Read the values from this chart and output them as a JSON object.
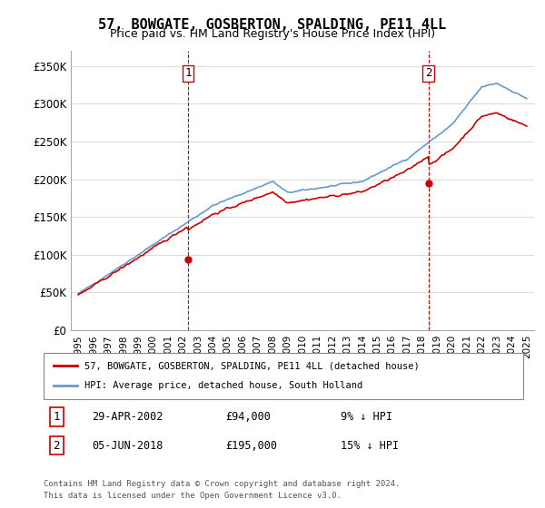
{
  "title": "57, BOWGATE, GOSBERTON, SPALDING, PE11 4LL",
  "subtitle": "Price paid vs. HM Land Registry's House Price Index (HPI)",
  "ylabel_ticks": [
    "£0",
    "£50K",
    "£100K",
    "£150K",
    "£200K",
    "£250K",
    "£300K",
    "£350K"
  ],
  "ytick_values": [
    0,
    50000,
    100000,
    150000,
    200000,
    250000,
    300000,
    350000
  ],
  "ylim": [
    0,
    370000
  ],
  "sale1_x": 2002.33,
  "sale1_price": 94000,
  "sale2_x": 2018.43,
  "sale2_price": 195000,
  "legend_line1": "57, BOWGATE, GOSBERTON, SPALDING, PE11 4LL (detached house)",
  "legend_line2": "HPI: Average price, detached house, South Holland",
  "footnote1": "Contains HM Land Registry data © Crown copyright and database right 2024.",
  "footnote2": "This data is licensed under the Open Government Licence v3.0.",
  "table_row1_num": "1",
  "table_row1_date": "29-APR-2002",
  "table_row1_price": "£94,000",
  "table_row1_pct": "9% ↓ HPI",
  "table_row2_num": "2",
  "table_row2_date": "05-JUN-2018",
  "table_row2_price": "£195,000",
  "table_row2_pct": "15% ↓ HPI",
  "line_color_red": "#cc0000",
  "line_color_blue": "#6699cc",
  "vline_color": "#cc0000",
  "grid_color": "#dddddd"
}
